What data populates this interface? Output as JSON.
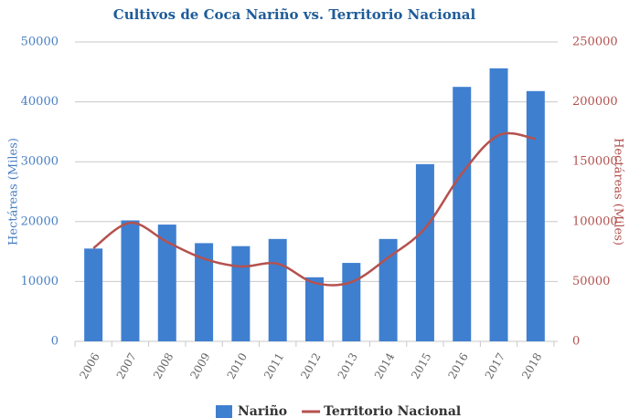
{
  "chart_data": {
    "type": "bar_line",
    "title": "Cultivos de Coca Nariño vs. Territorio Nacional",
    "ylabel": "Hectáreas (Miles)",
    "y2label": "Hectáreas (Miles)",
    "categories": [
      "2006",
      "2007",
      "2008",
      "2009",
      "2010",
      "2011",
      "2012",
      "2013",
      "2014",
      "2015",
      "2016",
      "2017",
      "2018"
    ],
    "series": [
      {
        "name": "Nariño",
        "type": "bar",
        "color": "#3f7fd0",
        "values": [
          15500,
          20200,
          19500,
          16400,
          15900,
          17100,
          10700,
          13100,
          17100,
          29600,
          42500,
          45600,
          41800
        ]
      },
      {
        "name": "Territorio Nacional",
        "type": "line",
        "axis": "y2",
        "color": "#b5524e",
        "values": [
          77800,
          99000,
          83000,
          69000,
          62500,
          64800,
          48800,
          49500,
          70000,
          94500,
          140200,
          172200,
          169000
        ]
      }
    ],
    "ylim": [
      0,
      50000
    ],
    "yticks": [
      0,
      10000,
      20000,
      30000,
      40000,
      50000
    ],
    "y2lim": [
      0,
      250000
    ],
    "y2ticks": [
      0,
      50000,
      100000,
      150000,
      200000,
      250000
    ],
    "grid": true,
    "legend": "bottom"
  }
}
